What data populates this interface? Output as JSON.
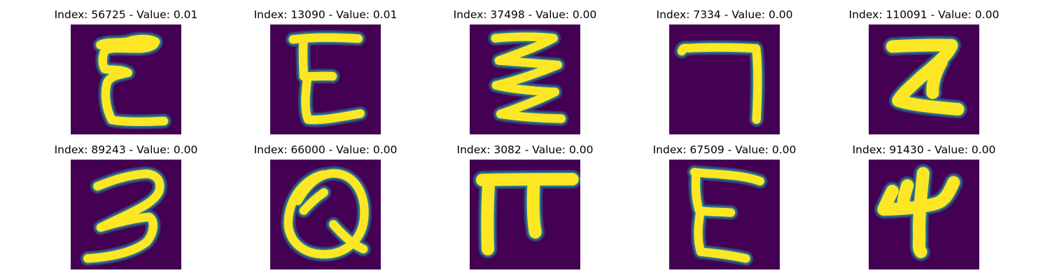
{
  "colors": {
    "background": "#440154",
    "stroke_core": "#fde725",
    "stroke_mid": "#21918c",
    "stroke_edge": "#31688e"
  },
  "samples": [
    {
      "index": "56725",
      "value": "0.01",
      "title": "Index: 56725 - Value: 0.01",
      "glyph": "E"
    },
    {
      "index": "13090",
      "value": "0.01",
      "title": "Index: 13090 - Value: 0.01",
      "glyph": "E"
    },
    {
      "index": "37498",
      "value": "0.00",
      "title": "Index: 37498 - Value: 0.00",
      "glyph": "zigzag"
    },
    {
      "index": "7334",
      "value": "0.00",
      "title": "Index: 7334 - Value: 0.00",
      "glyph": "7"
    },
    {
      "index": "110091",
      "value": "0.00",
      "title": "Index: 110091 - Value: 0.00",
      "glyph": "Z"
    },
    {
      "index": "89243",
      "value": "0.00",
      "title": "Index: 89243 - Value: 0.00",
      "glyph": "3"
    },
    {
      "index": "66000",
      "value": "0.00",
      "title": "Index: 66000 - Value: 0.00",
      "glyph": "Q"
    },
    {
      "index": "3082",
      "value": "0.00",
      "title": "Index: 3082 - Value: 0.00",
      "glyph": "pi"
    },
    {
      "index": "67509",
      "value": "0.00",
      "title": "Index: 67509 - Value: 0.00",
      "glyph": "E"
    },
    {
      "index": "91430",
      "value": "0.00",
      "title": "Index: 91430 - Value: 0.00",
      "glyph": "4"
    }
  ]
}
